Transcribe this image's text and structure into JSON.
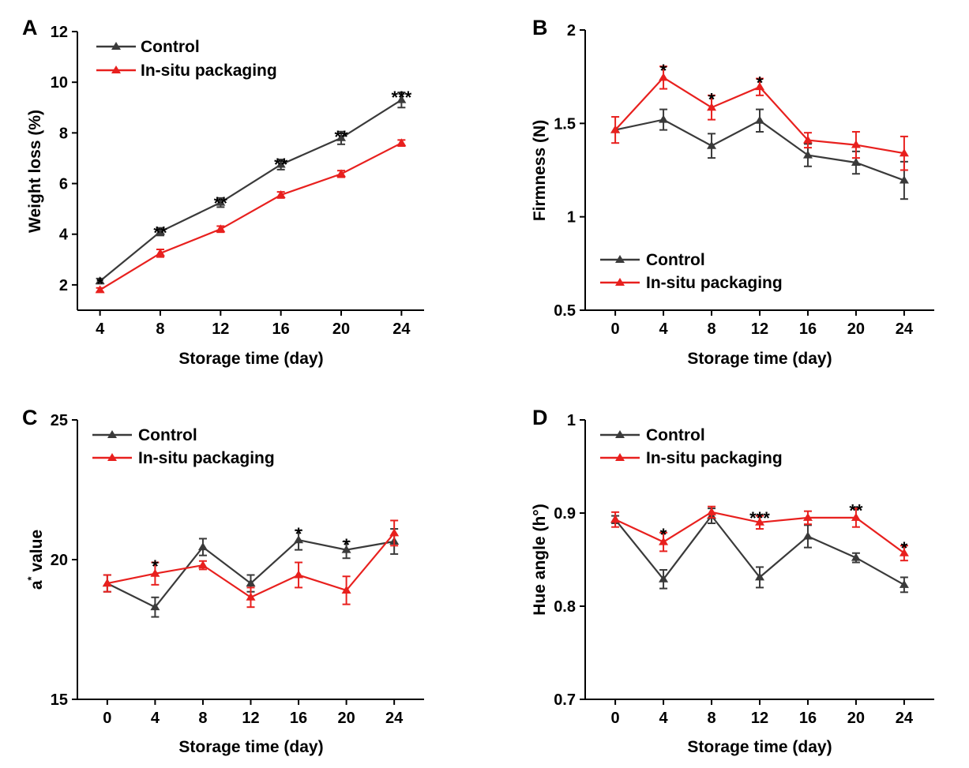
{
  "figure": {
    "colors": {
      "control": "#3a3a3a",
      "insitu": "#e8201e"
    }
  },
  "chart_data": [
    {
      "panel": "A",
      "type": "line",
      "xlabel": "Storage time (day)",
      "ylabel": "Weight loss (%)",
      "x": [
        4,
        8,
        12,
        16,
        20,
        24
      ],
      "x_ticks": [
        "4",
        "8",
        "12",
        "16",
        "20",
        "24"
      ],
      "xlim": [
        2.5,
        25.5
      ],
      "ylim": [
        1,
        12
      ],
      "y_ticks": [
        "2",
        "4",
        "6",
        "8",
        "10",
        "12"
      ],
      "y_tick_values": [
        2,
        4,
        6,
        8,
        10,
        12
      ],
      "legend_position": "top-left",
      "series": [
        {
          "name": "Control",
          "values": [
            2.15,
            4.1,
            5.25,
            6.75,
            7.8,
            9.3
          ],
          "errors": [
            0.1,
            0.15,
            0.18,
            0.2,
            0.25,
            0.3
          ]
        },
        {
          "name": "In-situ packaging",
          "values": [
            1.8,
            3.25,
            4.2,
            5.55,
            6.38,
            7.6
          ],
          "errors": [
            0.08,
            0.15,
            0.12,
            0.12,
            0.13,
            0.12
          ]
        }
      ],
      "annotations": [
        {
          "x": 4,
          "y": 2.25,
          "text": "*"
        },
        {
          "x": 8,
          "y": 4.25,
          "text": "**"
        },
        {
          "x": 12,
          "y": 5.43,
          "text": "**"
        },
        {
          "x": 16,
          "y": 6.95,
          "text": "**"
        },
        {
          "x": 20,
          "y": 8.05,
          "text": "**"
        },
        {
          "x": 24,
          "y": 9.6,
          "text": "***"
        }
      ]
    },
    {
      "panel": "B",
      "type": "line",
      "xlabel": "Storage time (day)",
      "ylabel": "Firmness (N)",
      "x": [
        0,
        4,
        8,
        12,
        16,
        20,
        24
      ],
      "x_ticks": [
        "0",
        "4",
        "8",
        "12",
        "16",
        "20",
        "24"
      ],
      "xlim": [
        -2.5,
        26.5
      ],
      "ylim": [
        0.5,
        2
      ],
      "y_ticks": [
        "0.5",
        "1",
        "1.5",
        "2"
      ],
      "y_tick_values": [
        0.5,
        1,
        1.5,
        2
      ],
      "legend_position": "bottom-left",
      "series": [
        {
          "name": "Control",
          "values": [
            1.465,
            1.52,
            1.38,
            1.515,
            1.33,
            1.29,
            1.195
          ],
          "errors": [
            0.0,
            0.055,
            0.065,
            0.06,
            0.06,
            0.06,
            0.1
          ]
        },
        {
          "name": "In-situ packaging",
          "values": [
            1.465,
            1.745,
            1.585,
            1.695,
            1.41,
            1.385,
            1.34
          ],
          "errors": [
            0.07,
            0.06,
            0.065,
            0.045,
            0.04,
            0.07,
            0.09
          ]
        }
      ],
      "annotations": [
        {
          "x": 4,
          "y": 1.81,
          "text": "*"
        },
        {
          "x": 8,
          "y": 1.655,
          "text": "*"
        },
        {
          "x": 12,
          "y": 1.745,
          "text": "*"
        }
      ]
    },
    {
      "panel": "C",
      "type": "line",
      "xlabel": "Storage time (day)",
      "ylabel": "a* value",
      "ylabel_main": "a",
      "ylabel_sup": "*",
      "ylabel_rest": " value",
      "x": [
        0,
        4,
        8,
        12,
        16,
        20,
        24
      ],
      "x_ticks": [
        "0",
        "4",
        "8",
        "12",
        "16",
        "20",
        "24"
      ],
      "xlim": [
        -2.5,
        26.5
      ],
      "ylim": [
        15,
        25
      ],
      "y_ticks": [
        "15",
        "20",
        "25"
      ],
      "y_tick_values": [
        15,
        20,
        25
      ],
      "legend_position": "top-left",
      "series": [
        {
          "name": "Control",
          "values": [
            19.15,
            18.3,
            20.45,
            19.15,
            20.7,
            20.35,
            20.65
          ],
          "errors": [
            0.3,
            0.35,
            0.3,
            0.3,
            0.35,
            0.3,
            0.45
          ]
        },
        {
          "name": "In-situ packaging",
          "values": [
            19.15,
            19.5,
            19.8,
            18.65,
            19.45,
            18.9,
            20.95
          ],
          "errors": [
            0.3,
            0.4,
            0.15,
            0.35,
            0.45,
            0.5,
            0.45
          ]
        }
      ],
      "annotations": [
        {
          "x": 4,
          "y": 19.95,
          "text": "*"
        },
        {
          "x": 16,
          "y": 21.1,
          "text": "*"
        },
        {
          "x": 20,
          "y": 20.7,
          "text": "*"
        }
      ]
    },
    {
      "panel": "D",
      "type": "line",
      "xlabel": "Storage time (day)",
      "ylabel": "Hue angle (h°)",
      "x": [
        0,
        4,
        8,
        12,
        16,
        20,
        24
      ],
      "x_ticks": [
        "0",
        "4",
        "8",
        "12",
        "16",
        "20",
        "24"
      ],
      "xlim": [
        -2.5,
        26.5
      ],
      "ylim": [
        0.7,
        1
      ],
      "y_ticks": [
        "0.7",
        "0.8",
        "0.9",
        "1"
      ],
      "y_tick_values": [
        0.7,
        0.8,
        0.9,
        1
      ],
      "legend_position": "top-left",
      "series": [
        {
          "name": "Control",
          "values": [
            0.893,
            0.829,
            0.897,
            0.831,
            0.875,
            0.852,
            0.823
          ],
          "errors": [
            0.004,
            0.01,
            0.008,
            0.011,
            0.012,
            0.005,
            0.008
          ]
        },
        {
          "name": "In-situ packaging",
          "values": [
            0.893,
            0.869,
            0.901,
            0.89,
            0.895,
            0.895,
            0.857
          ],
          "errors": [
            0.008,
            0.01,
            0.006,
            0.007,
            0.007,
            0.01,
            0.008
          ]
        }
      ],
      "annotations": [
        {
          "x": 4,
          "y": 0.882,
          "text": "*"
        },
        {
          "x": 12,
          "y": 0.9,
          "text": "***"
        },
        {
          "x": 20,
          "y": 0.908,
          "text": "**"
        },
        {
          "x": 24,
          "y": 0.868,
          "text": "*"
        }
      ]
    }
  ]
}
